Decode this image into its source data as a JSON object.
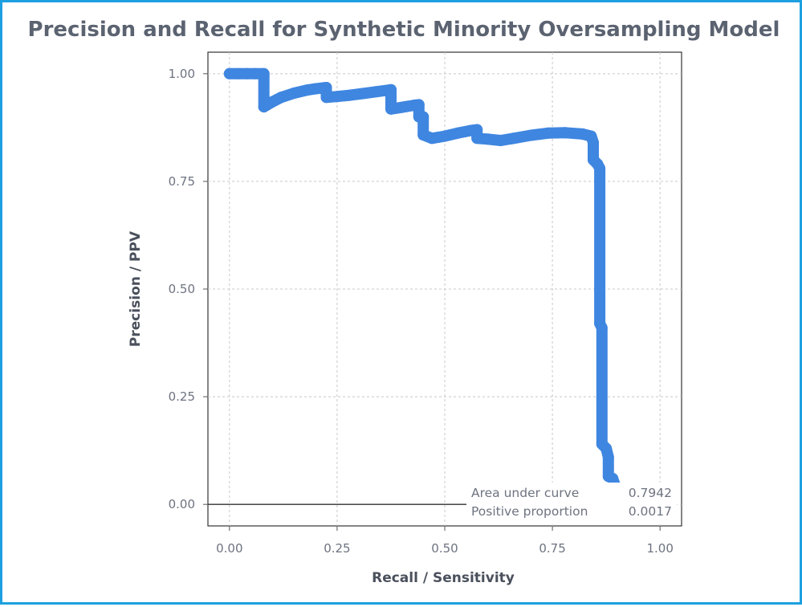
{
  "chart_data": {
    "type": "line",
    "title": "Precision and Recall for Synthetic Minority Oversampling Model",
    "xlabel": "Recall / Sensitivity",
    "ylabel": "Precision / PPV",
    "xlim": [
      -0.05,
      1.05
    ],
    "ylim": [
      -0.05,
      1.05
    ],
    "x_ticks": [
      "0.00",
      "0.25",
      "0.50",
      "0.75",
      "1.00"
    ],
    "y_ticks": [
      "0.00",
      "0.25",
      "0.50",
      "0.75",
      "1.00"
    ],
    "grid": true,
    "series": [
      {
        "color": "#3f86e0",
        "points": [
          [
            0.0,
            1.0
          ],
          [
            0.02,
            1.0
          ],
          [
            0.04,
            1.0
          ],
          [
            0.06,
            1.0
          ],
          [
            0.08,
            1.0
          ],
          [
            0.08,
            0.923
          ],
          [
            0.1,
            0.935
          ],
          [
            0.12,
            0.945
          ],
          [
            0.15,
            0.955
          ],
          [
            0.18,
            0.962
          ],
          [
            0.2,
            0.965
          ],
          [
            0.225,
            0.968
          ],
          [
            0.225,
            0.945
          ],
          [
            0.25,
            0.947
          ],
          [
            0.28,
            0.95
          ],
          [
            0.31,
            0.954
          ],
          [
            0.34,
            0.958
          ],
          [
            0.37,
            0.962
          ],
          [
            0.375,
            0.963
          ],
          [
            0.375,
            0.918
          ],
          [
            0.4,
            0.922
          ],
          [
            0.43,
            0.927
          ],
          [
            0.44,
            0.928
          ],
          [
            0.44,
            0.9
          ],
          [
            0.45,
            0.9
          ],
          [
            0.45,
            0.858
          ],
          [
            0.47,
            0.85
          ],
          [
            0.5,
            0.855
          ],
          [
            0.53,
            0.862
          ],
          [
            0.56,
            0.868
          ],
          [
            0.575,
            0.87
          ],
          [
            0.575,
            0.85
          ],
          [
            0.6,
            0.848
          ],
          [
            0.63,
            0.845
          ],
          [
            0.66,
            0.85
          ],
          [
            0.7,
            0.857
          ],
          [
            0.74,
            0.862
          ],
          [
            0.78,
            0.863
          ],
          [
            0.82,
            0.86
          ],
          [
            0.84,
            0.855
          ],
          [
            0.845,
            0.84
          ],
          [
            0.845,
            0.8
          ],
          [
            0.855,
            0.79
          ],
          [
            0.86,
            0.78
          ],
          [
            0.86,
            0.42
          ],
          [
            0.865,
            0.41
          ],
          [
            0.865,
            0.14
          ],
          [
            0.875,
            0.13
          ],
          [
            0.88,
            0.11
          ],
          [
            0.88,
            0.065
          ],
          [
            0.89,
            0.06
          ],
          [
            0.895,
            0.045
          ],
          [
            0.905,
            0.035
          ],
          [
            0.92,
            0.03
          ],
          [
            0.93,
            0.025
          ]
        ]
      }
    ],
    "annotation_rows": [
      {
        "label": "Area under curve",
        "value": "0.7942"
      },
      {
        "label": "Positive proportion",
        "value": "0.0017"
      }
    ],
    "annotation_placement": "bottom-right"
  }
}
